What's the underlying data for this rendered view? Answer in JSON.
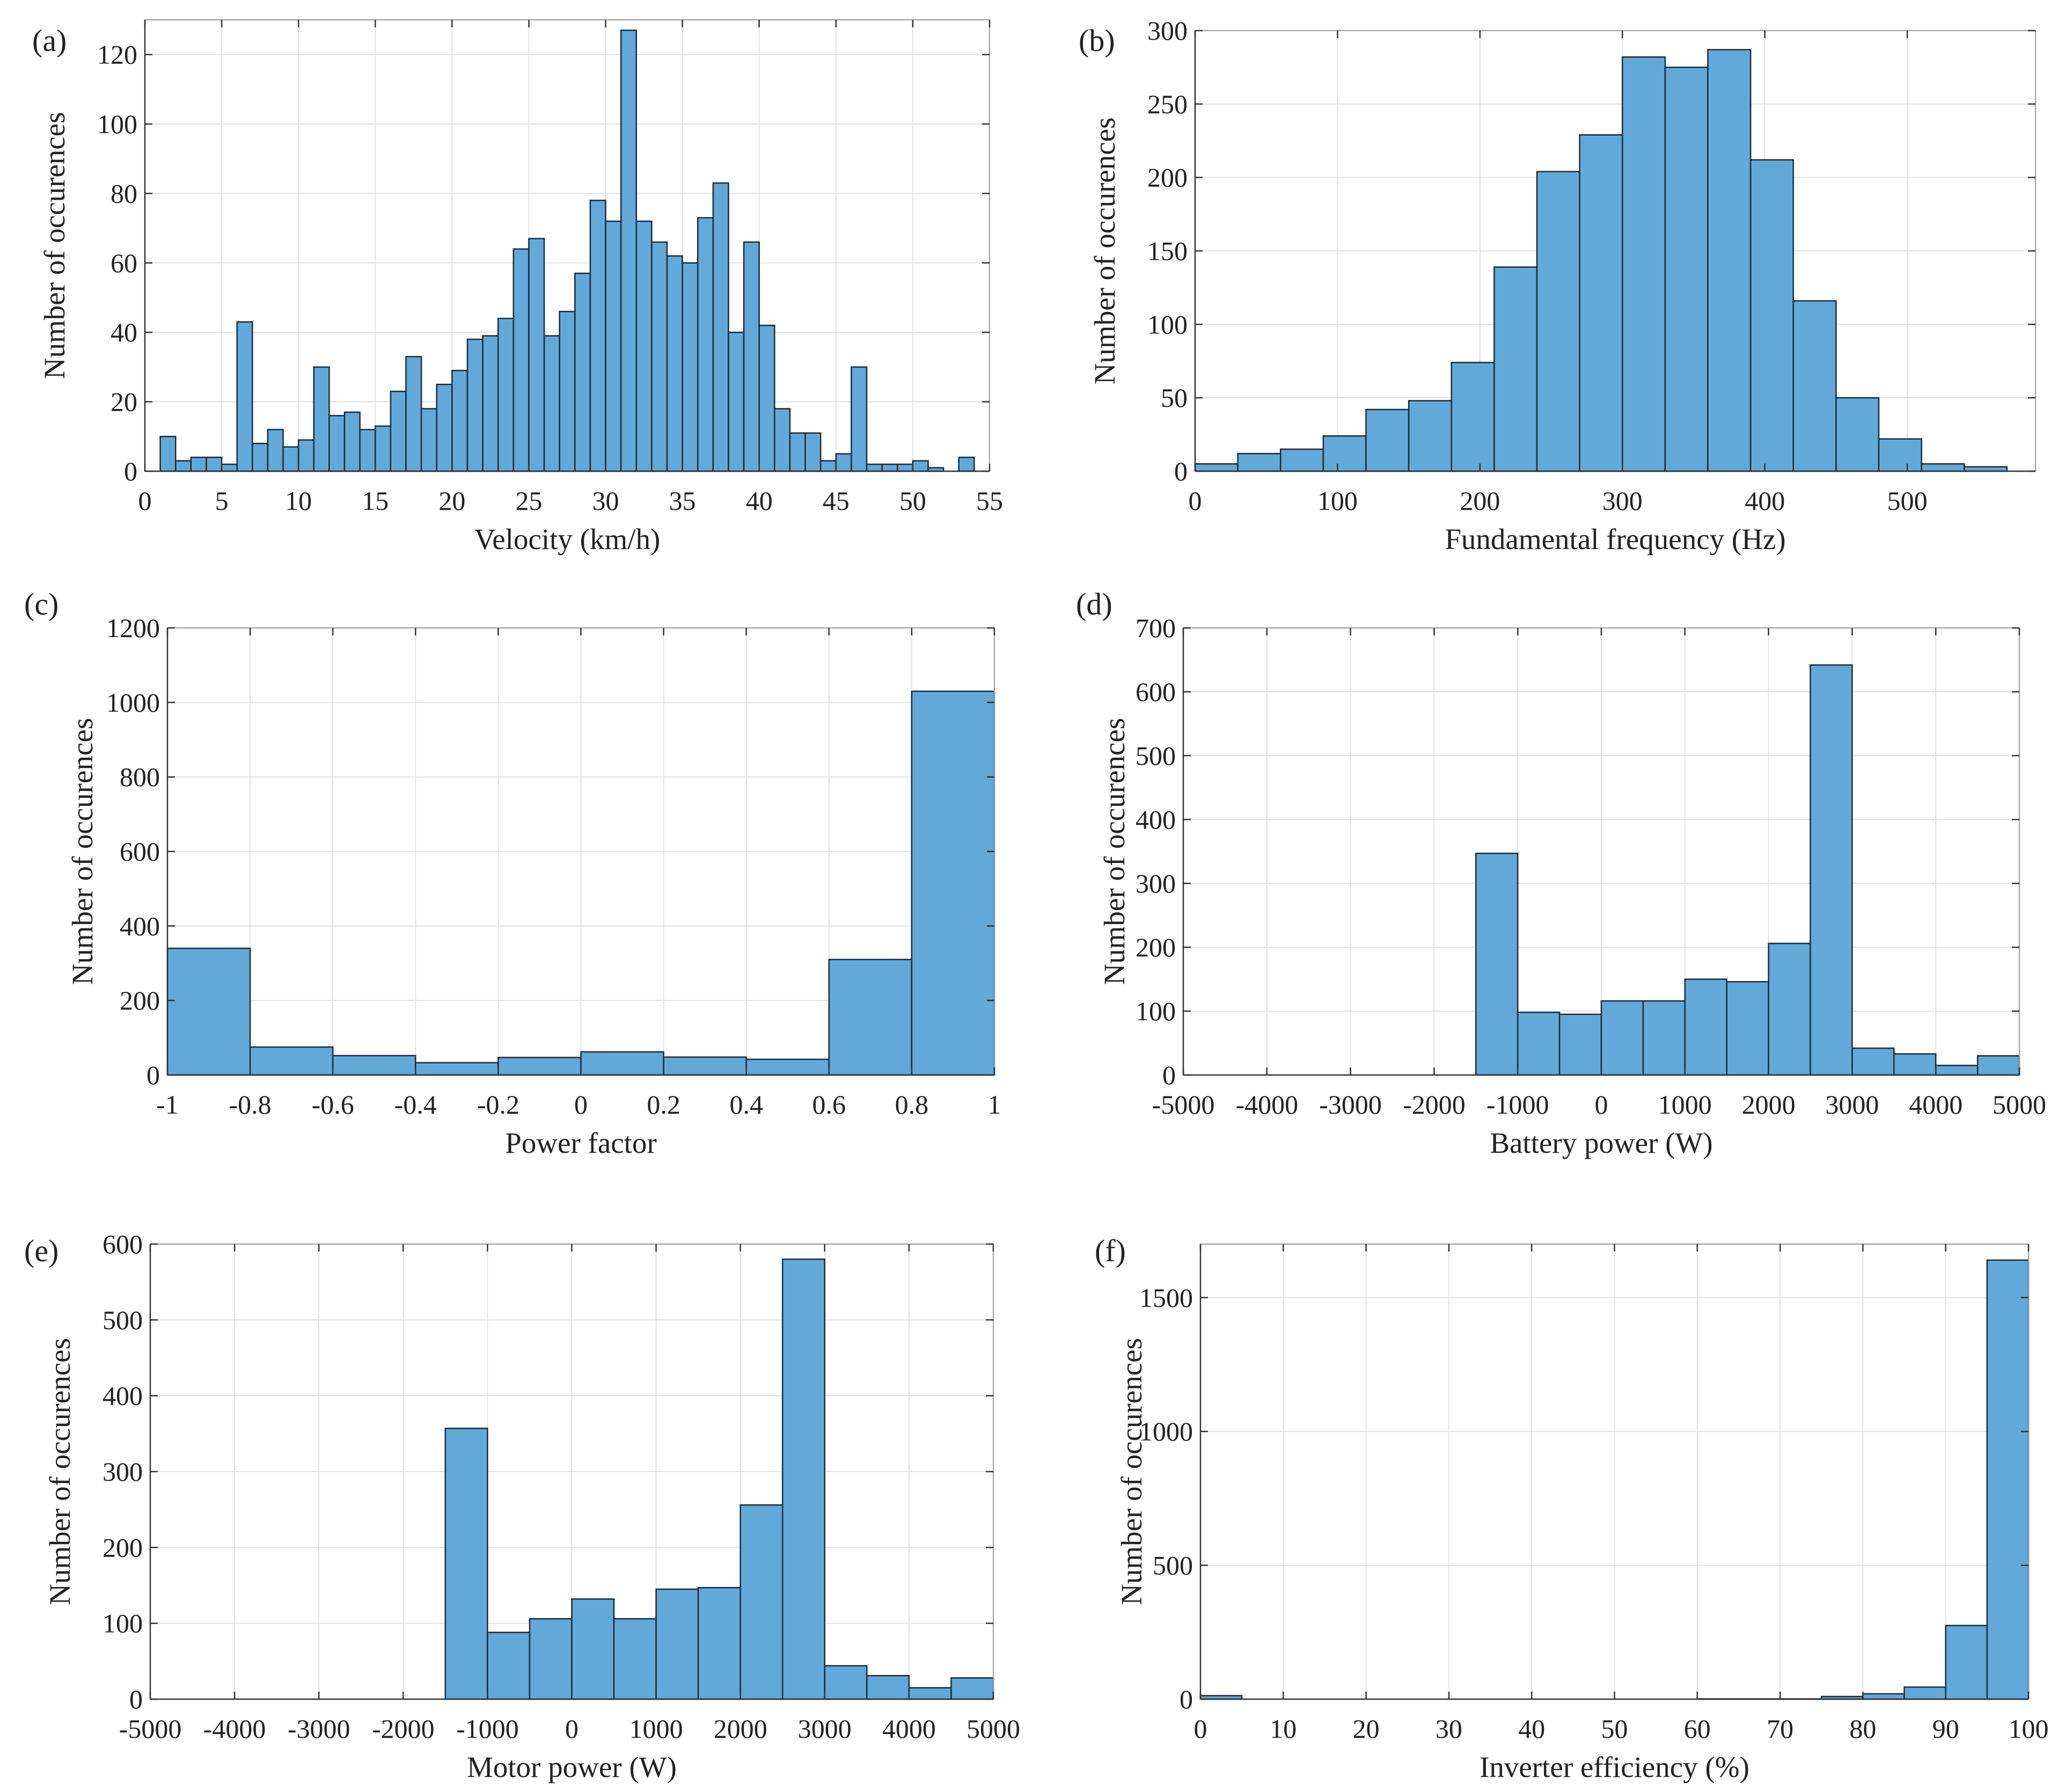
{
  "style": {
    "bar_color": "#62a8d8",
    "edge_color": "#1c2b38",
    "grid_color": "#e2e2e2"
  },
  "chart_data": [
    {
      "panel": "(a)",
      "type": "bar",
      "xlabel": "Velocity (km/h)",
      "ylabel": "Number of occurences",
      "xlim": [
        0,
        55
      ],
      "ylim": [
        0,
        130
      ],
      "xticks": [
        0,
        5,
        10,
        15,
        20,
        25,
        30,
        35,
        40,
        45,
        50,
        55
      ],
      "yticks": [
        0,
        20,
        40,
        60,
        80,
        100,
        120
      ],
      "bin_edges_start": 1,
      "bin_width": 1,
      "values": [
        10,
        3,
        4,
        4,
        2,
        43,
        8,
        12,
        7,
        9,
        30,
        16,
        17,
        12,
        13,
        23,
        33,
        18,
        25,
        29,
        38,
        39,
        44,
        64,
        67,
        39,
        46,
        57,
        78,
        72,
        127,
        72,
        66,
        62,
        60,
        73,
        83,
        40,
        66,
        42,
        18,
        11,
        11,
        3,
        5,
        30,
        2,
        2,
        2,
        3,
        1,
        0,
        4
      ]
    },
    {
      "panel": "(b)",
      "type": "bar",
      "xlabel": "Fundamental frequency (Hz)",
      "ylabel": "Number of occurences",
      "xlim": [
        0,
        590
      ],
      "ylim": [
        0,
        300
      ],
      "xticks": [
        0,
        100,
        200,
        300,
        400,
        500
      ],
      "yticks": [
        0,
        50,
        100,
        150,
        200,
        250,
        300
      ],
      "bin_edges_start": 0,
      "bin_width": 30,
      "values": [
        5,
        12,
        15,
        24,
        42,
        48,
        74,
        139,
        204,
        229,
        282,
        275,
        287,
        212,
        116,
        50,
        22,
        5,
        3
      ]
    },
    {
      "panel": "(c)",
      "type": "bar",
      "xlabel": "Power factor",
      "ylabel": "Number of occurences",
      "xlim": [
        -1,
        1
      ],
      "ylim": [
        0,
        1200
      ],
      "xticks": [
        -1,
        -0.8,
        -0.6,
        -0.4,
        -0.2,
        0,
        0.2,
        0.4,
        0.6,
        0.8,
        1
      ],
      "yticks": [
        0,
        200,
        400,
        600,
        800,
        1000,
        1200
      ],
      "bin_edges_start": -1,
      "bin_width": 0.2,
      "values": [
        340,
        75,
        52,
        33,
        47,
        62,
        48,
        42,
        310,
        1030
      ]
    },
    {
      "panel": "(d)",
      "type": "bar",
      "xlabel": "Battery power (W)",
      "ylabel": "Number of occurences",
      "xlim": [
        -5000,
        5000
      ],
      "ylim": [
        0,
        700
      ],
      "xticks": [
        -5000,
        -4000,
        -3000,
        -2000,
        -1000,
        0,
        1000,
        2000,
        3000,
        4000,
        5000
      ],
      "yticks": [
        0,
        100,
        200,
        300,
        400,
        500,
        600,
        700
      ],
      "bin_edges_start": -1500,
      "bin_width": 500,
      "values": [
        347,
        98,
        95,
        116,
        116,
        150,
        146,
        206,
        642,
        42,
        33,
        15,
        30
      ]
    },
    {
      "panel": "(e)",
      "type": "bar",
      "xlabel": "Motor power (W)",
      "ylabel": "Number of occurences",
      "xlim": [
        -5000,
        5000
      ],
      "ylim": [
        0,
        600
      ],
      "xticks": [
        -5000,
        -4000,
        -3000,
        -2000,
        -1000,
        0,
        1000,
        2000,
        3000,
        4000,
        5000
      ],
      "yticks": [
        0,
        100,
        200,
        300,
        400,
        500,
        600
      ],
      "bin_edges_start": -1500,
      "bin_width": 500,
      "values": [
        357,
        88,
        106,
        132,
        106,
        145,
        147,
        256,
        580,
        44,
        31,
        15,
        28
      ]
    },
    {
      "panel": "(f)",
      "type": "bar",
      "xlabel": "Inverter efficiency (%)",
      "ylabel": "Number of occurences",
      "xlim": [
        0,
        100
      ],
      "ylim": [
        0,
        1700
      ],
      "xticks": [
        0,
        10,
        20,
        30,
        40,
        50,
        60,
        70,
        80,
        90,
        100
      ],
      "yticks": [
        0,
        500,
        1000,
        1500
      ],
      "bin_edges_start": 0,
      "bin_width": 5,
      "values": [
        13,
        0,
        0,
        0,
        0,
        0,
        0,
        0,
        0,
        0,
        0,
        0,
        1,
        1,
        1,
        10,
        20,
        45,
        275,
        1640
      ]
    }
  ]
}
